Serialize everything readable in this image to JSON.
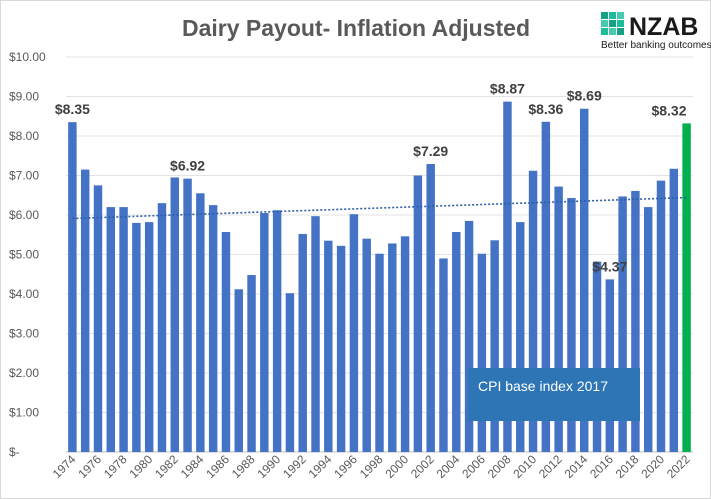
{
  "logo": {
    "name": "NZAB",
    "tagline": "Better banking outcomes",
    "accent": "#16a085"
  },
  "annotation": {
    "text": "CPI base index 2017",
    "color": "#2e75b6"
  },
  "chart_data": {
    "type": "bar",
    "title": "Dairy Payout- Inflation Adjusted",
    "xlabel": "",
    "ylabel": "",
    "ylim": [
      0,
      10
    ],
    "y_ticks": [
      "$-",
      "$1.00",
      "$2.00",
      "$3.00",
      "$4.00",
      "$5.00",
      "$6.00",
      "$7.00",
      "$8.00",
      "$9.00",
      "$10.00"
    ],
    "grid": "horizontal",
    "legend": "none",
    "bar_color": "#4472c4",
    "highlight_color": "#00b050",
    "highlight_category": "2022",
    "trendline": {
      "type": "linear",
      "style": "dotted",
      "color": "#2e5ea8"
    },
    "categories": [
      "1974",
      "1975",
      "1976",
      "1977",
      "1978",
      "1979",
      "1980",
      "1981",
      "1982",
      "1983",
      "1984",
      "1985",
      "1986",
      "1987",
      "1988",
      "1989",
      "1990",
      "1991",
      "1992",
      "1993",
      "1994",
      "1995",
      "1996",
      "1997",
      "1998",
      "1999",
      "2000",
      "2001",
      "2002",
      "2003",
      "2004",
      "2005",
      "2006",
      "2007",
      "2008",
      "2009",
      "2010",
      "2011",
      "2012",
      "2013",
      "2014",
      "2015",
      "2016",
      "2017",
      "2018",
      "2019",
      "2020",
      "2021",
      "2022"
    ],
    "x_tick_labels": [
      "1974",
      "1976",
      "1978",
      "1980",
      "1982",
      "1984",
      "1986",
      "1988",
      "1990",
      "1992",
      "1994",
      "1996",
      "1998",
      "2000",
      "2002",
      "2004",
      "2006",
      "2008",
      "2010",
      "2012",
      "2014",
      "2016",
      "2018",
      "2020",
      "2022"
    ],
    "values": [
      8.35,
      7.15,
      6.75,
      6.2,
      6.2,
      5.8,
      5.82,
      6.3,
      6.95,
      6.92,
      6.55,
      6.25,
      5.57,
      4.12,
      4.48,
      6.05,
      6.12,
      4.02,
      5.52,
      5.97,
      5.35,
      5.22,
      6.02,
      5.4,
      5.02,
      5.28,
      5.46,
      7.0,
      7.29,
      4.9,
      5.57,
      5.85,
      5.02,
      5.36,
      8.87,
      5.82,
      7.12,
      8.36,
      6.72,
      6.43,
      8.69,
      4.82,
      4.37,
      6.47,
      6.61,
      6.2,
      6.87,
      7.17,
      8.32
    ],
    "data_labels": [
      {
        "category": "1974",
        "text": "$8.35"
      },
      {
        "category": "1983",
        "text": "$6.92"
      },
      {
        "category": "2002",
        "text": "$7.29"
      },
      {
        "category": "2008",
        "text": "$8.87"
      },
      {
        "category": "2011",
        "text": "$8.36"
      },
      {
        "category": "2014",
        "text": "$8.69"
      },
      {
        "category": "2016",
        "text": "$4.37"
      },
      {
        "category": "2022",
        "text": "$8.32"
      }
    ]
  }
}
